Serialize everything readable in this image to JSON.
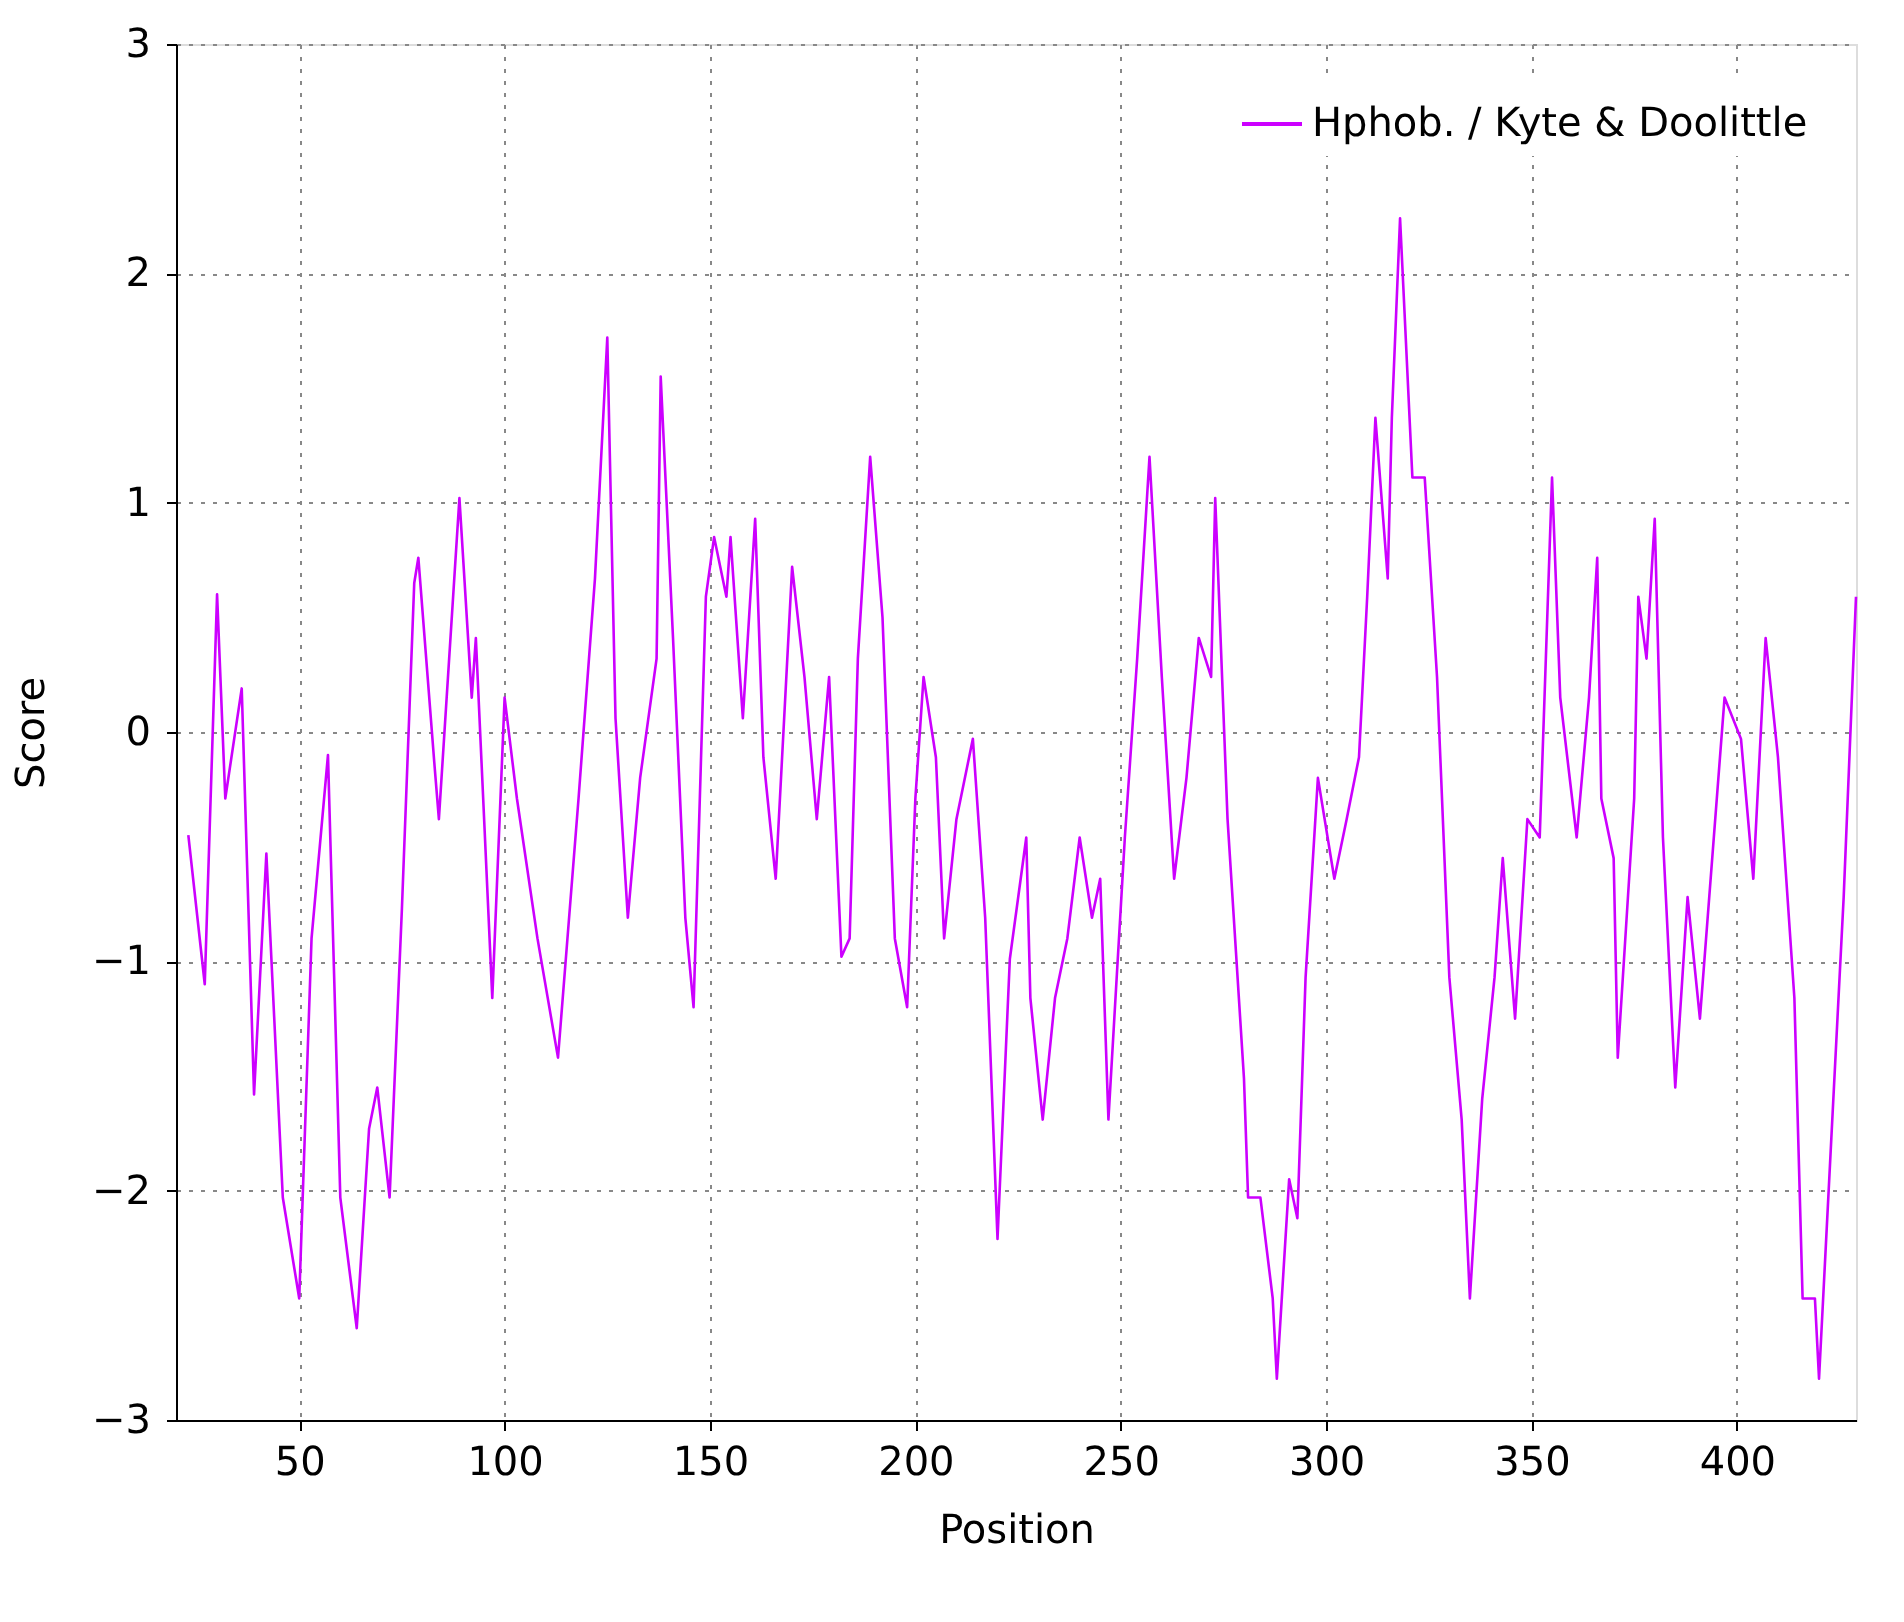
{
  "chart_data": {
    "type": "line",
    "xlabel": "Position",
    "ylabel": "Score",
    "xlim": [
      20,
      429
    ],
    "ylim": [
      -3,
      3
    ],
    "xticks": [
      50,
      100,
      150,
      200,
      250,
      300,
      350,
      400
    ],
    "yticks": [
      -3,
      -2,
      -1,
      0,
      1,
      2,
      3
    ],
    "grid": true,
    "legend": "top right",
    "line_style": "solid",
    "marker": "none",
    "series": [
      {
        "name": "Hphob. / Kyte & Doolittle",
        "color": "#cc00ff",
        "x": [
          23,
          27,
          30,
          32,
          36,
          39,
          42,
          46,
          50,
          53,
          57,
          60,
          64,
          67,
          69,
          72,
          75,
          78,
          79,
          83,
          84,
          89,
          92,
          93,
          97,
          100,
          103,
          108,
          113,
          118,
          122,
          125,
          127,
          130,
          133,
          137,
          138,
          141,
          144,
          146,
          149,
          151,
          154,
          155,
          158,
          161,
          163,
          166,
          170,
          173,
          176,
          179,
          182,
          184,
          186,
          189,
          192,
          195,
          198,
          200,
          202,
          205,
          207,
          210,
          214,
          217,
          220,
          223,
          227,
          228,
          231,
          234,
          237,
          240,
          243,
          245,
          247,
          251,
          254,
          257,
          260,
          263,
          266,
          269,
          272,
          273,
          276,
          280,
          281,
          284,
          287,
          288,
          291,
          293,
          295,
          298,
          302,
          305,
          308,
          310,
          312,
          315,
          316,
          318,
          321,
          324,
          327,
          330,
          333,
          335,
          338,
          341,
          343,
          346,
          349,
          352,
          355,
          357,
          361,
          364,
          366,
          367,
          370,
          371,
          375,
          376,
          378,
          380,
          382,
          385,
          388,
          391,
          394,
          397,
          401,
          404,
          407,
          410,
          414,
          416,
          419,
          420,
          423,
          426,
          429
        ],
        "values": [
          -0.45,
          -1.1,
          0.6,
          -0.29,
          0.19,
          -1.58,
          -0.53,
          -2.03,
          -2.47,
          -0.9,
          -0.1,
          -2.03,
          -2.6,
          -1.73,
          -1.55,
          -2.03,
          -0.77,
          0.65,
          0.76,
          -0.16,
          -0.38,
          1.02,
          0.15,
          0.41,
          -1.16,
          0.15,
          -0.29,
          -0.9,
          -1.42,
          -0.29,
          0.67,
          1.72,
          0.06,
          -0.81,
          -0.2,
          0.32,
          1.55,
          0.41,
          -0.81,
          -1.2,
          0.59,
          0.85,
          0.59,
          0.85,
          0.06,
          0.93,
          -0.11,
          -0.64,
          0.72,
          0.24,
          -0.38,
          0.24,
          -0.98,
          -0.9,
          0.32,
          1.2,
          0.5,
          -0.9,
          -1.2,
          -0.29,
          0.24,
          -0.11,
          -0.9,
          -0.38,
          -0.03,
          -0.81,
          -2.21,
          -0.99,
          -0.46,
          -1.16,
          -1.69,
          -1.16,
          -0.9,
          -0.46,
          -0.81,
          -0.64,
          -1.69,
          -0.46,
          0.32,
          1.2,
          0.24,
          -0.64,
          -0.2,
          0.41,
          0.24,
          1.02,
          -0.38,
          -1.51,
          -2.03,
          -2.03,
          -2.47,
          -2.82,
          -1.95,
          -2.12,
          -1.07,
          -0.2,
          -0.64,
          -0.38,
          -0.11,
          0.59,
          1.37,
          0.67,
          1.37,
          2.24,
          1.11,
          1.11,
          0.24,
          -1.07,
          -1.69,
          -2.47,
          -1.6,
          -1.07,
          -0.55,
          -1.25,
          -0.38,
          -0.46,
          1.11,
          0.15,
          -0.46,
          0.15,
          0.76,
          -0.29,
          -0.55,
          -1.42,
          -0.29,
          0.59,
          0.32,
          0.93,
          -0.46,
          -1.55,
          -0.72,
          -1.25,
          -0.55,
          0.15,
          -0.03,
          -0.64,
          0.41,
          -0.11,
          -1.16,
          -2.47,
          -2.47,
          -2.82,
          -1.77,
          -0.72,
          0.59
        ]
      }
    ]
  }
}
